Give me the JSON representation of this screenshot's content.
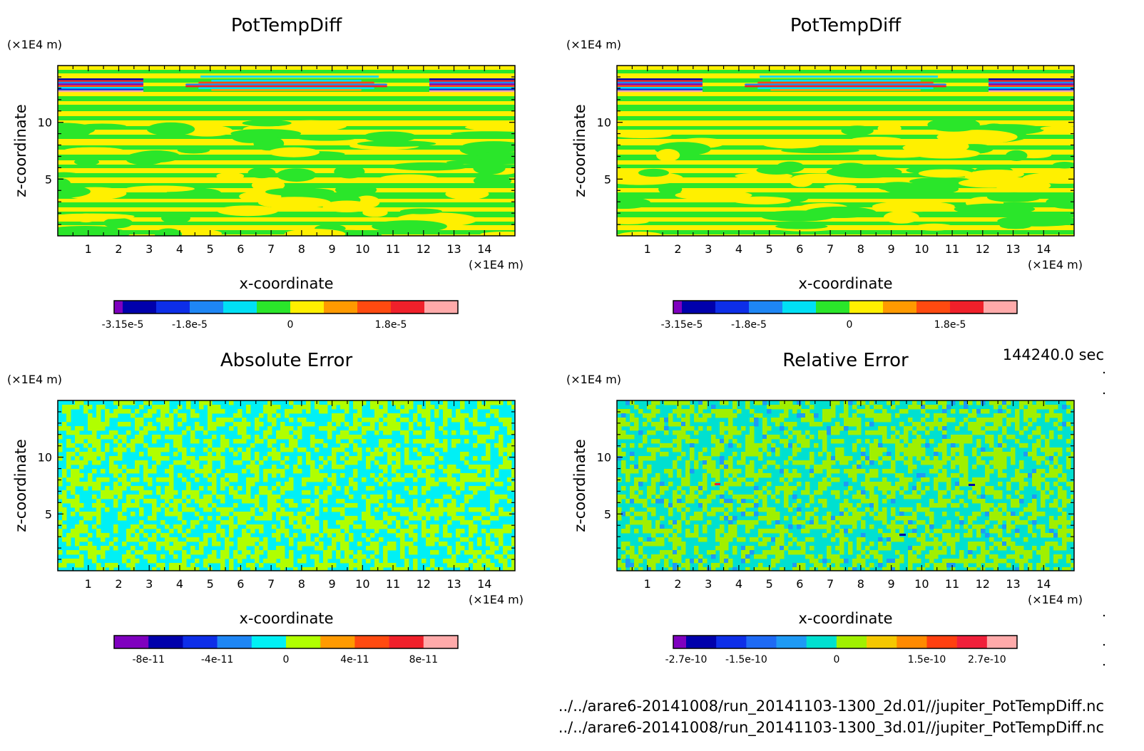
{
  "time_label": "144240.0 sec",
  "footer": {
    "line1": "../../arare6-20141008/run_20141103-1300_2d.01//jupiter_PotTempDiff.nc",
    "line2": "../../arare6-20141008/run_20141103-1300_3d.01//jupiter_PotTempDiff.nc"
  },
  "chart_data": [
    {
      "type": "heatmap",
      "title": "PotTempDiff",
      "xlabel": "x-coordinate",
      "ylabel": "z-coordinate",
      "x_unit": "(×1E4 m)",
      "y_unit": "(×1E4 m)",
      "xlim": [
        0,
        15
      ],
      "ylim": [
        0,
        15
      ],
      "xticks": [
        "1",
        "2",
        "3",
        "4",
        "5",
        "6",
        "7",
        "8",
        "9",
        "10",
        "11",
        "12",
        "13",
        "14"
      ],
      "yticks": [
        "5",
        "10"
      ],
      "pattern": "bands",
      "colorbar": {
        "colors": [
          "#7f00bf",
          "#0000ab",
          "#0d2ee8",
          "#1e86f5",
          "#00e0f5",
          "#2ae62a",
          "#fff000",
          "#ff9a00",
          "#ff4a10",
          "#f0202a",
          "#ffaaaa"
        ],
        "tick_labels": [
          "-3.15e-5",
          "-1.8e-5",
          "0",
          "1.8e-5"
        ]
      }
    },
    {
      "type": "heatmap",
      "title": "PotTempDiff",
      "xlabel": "x-coordinate",
      "ylabel": "z-coordinate",
      "x_unit": "(×1E4 m)",
      "y_unit": "(×1E4 m)",
      "xlim": [
        0,
        15
      ],
      "ylim": [
        0,
        15
      ],
      "xticks": [
        "1",
        "2",
        "3",
        "4",
        "5",
        "6",
        "7",
        "8",
        "9",
        "10",
        "11",
        "12",
        "13",
        "14"
      ],
      "yticks": [
        "5",
        "10"
      ],
      "pattern": "bands",
      "colorbar": {
        "colors": [
          "#7f00bf",
          "#0000ab",
          "#0d2ee8",
          "#1e86f5",
          "#00e0f5",
          "#2ae62a",
          "#fff000",
          "#ff9a00",
          "#ff4a10",
          "#f0202a",
          "#ffaaaa"
        ],
        "tick_labels": [
          "-3.15e-5",
          "-1.8e-5",
          "0",
          "1.8e-5"
        ]
      }
    },
    {
      "type": "heatmap",
      "title": "Absolute Error",
      "xlabel": "x-coordinate",
      "ylabel": "z-coordinate",
      "x_unit": "(×1E4 m)",
      "y_unit": "(×1E4 m)",
      "xlim": [
        0,
        15
      ],
      "ylim": [
        0,
        15
      ],
      "xticks": [
        "1",
        "2",
        "3",
        "4",
        "5",
        "6",
        "7",
        "8",
        "9",
        "10",
        "11",
        "12",
        "13",
        "14"
      ],
      "yticks": [
        "5",
        "10"
      ],
      "pattern": "noise",
      "colorbar": {
        "colors": [
          "#7f00bf",
          "#0000ab",
          "#0d2ee8",
          "#1e86f5",
          "#00f0f5",
          "#b0ff00",
          "#ff9a00",
          "#ff4a10",
          "#f0202a",
          "#ffaaaa"
        ],
        "tick_labels": [
          "-8e-11",
          "-4e-11",
          "0",
          "4e-11",
          "8e-11"
        ]
      }
    },
    {
      "type": "heatmap",
      "title": "Relative Error",
      "xlabel": "x-coordinate",
      "ylabel": "z-coordinate",
      "x_unit": "(×1E4 m)",
      "y_unit": "(×1E4 m)",
      "xlim": [
        0,
        15
      ],
      "ylim": [
        0,
        15
      ],
      "xticks": [
        "1",
        "2",
        "3",
        "4",
        "5",
        "6",
        "7",
        "8",
        "9",
        "10",
        "11",
        "12",
        "13",
        "14"
      ],
      "yticks": [
        "5",
        "10"
      ],
      "pattern": "noise2",
      "colorbar": {
        "colors": [
          "#7f00bf",
          "#0000ab",
          "#0d2ee8",
          "#1e6af5",
          "#1e9af5",
          "#00e0d0",
          "#a0f000",
          "#f5c800",
          "#ff8a00",
          "#ff4010",
          "#f0203a",
          "#ffaaaa"
        ],
        "tick_labels": [
          "-2.7e-10",
          "-1.5e-10",
          "0",
          "1.5e-10",
          "2.7e-10"
        ]
      }
    }
  ]
}
